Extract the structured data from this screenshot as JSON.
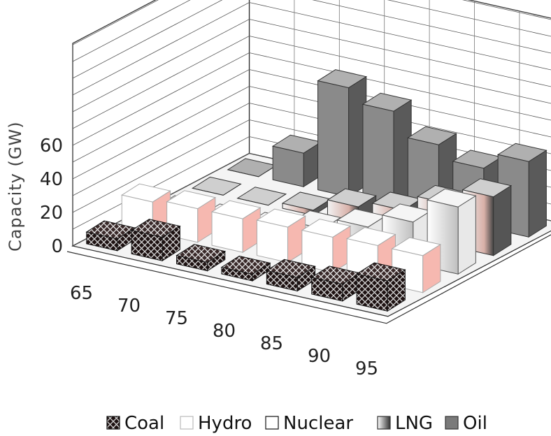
{
  "chart_data": {
    "type": "bar",
    "ylabel": "Capacity (GW)",
    "yticks": [
      0,
      20,
      40,
      60
    ],
    "categories": [
      "65",
      "70",
      "75",
      "80",
      "85",
      "90",
      "95"
    ],
    "series": [
      {
        "name": "Coal",
        "color": "#2b1a1a",
        "values": [
          7,
          14,
          5,
          4,
          8,
          10,
          18
        ]
      },
      {
        "name": "Hydro",
        "color": "#ffffff",
        "values": [
          18,
          20,
          20,
          21,
          21,
          22,
          22
        ]
      },
      {
        "name": "Nuclear",
        "color": "#dcdcdc",
        "values": [
          0,
          1,
          2,
          9,
          16,
          25,
          40
        ]
      },
      {
        "name": "LNG",
        "color": "#9a9a9a",
        "values": [
          0,
          0,
          3,
          11,
          15,
          25,
          35
        ]
      },
      {
        "name": "Oil",
        "color": "#7a7a7a",
        "values": [
          0,
          20,
          65,
          57,
          43,
          35,
          45
        ]
      }
    ],
    "legend_position": "bottom",
    "grid": true
  }
}
